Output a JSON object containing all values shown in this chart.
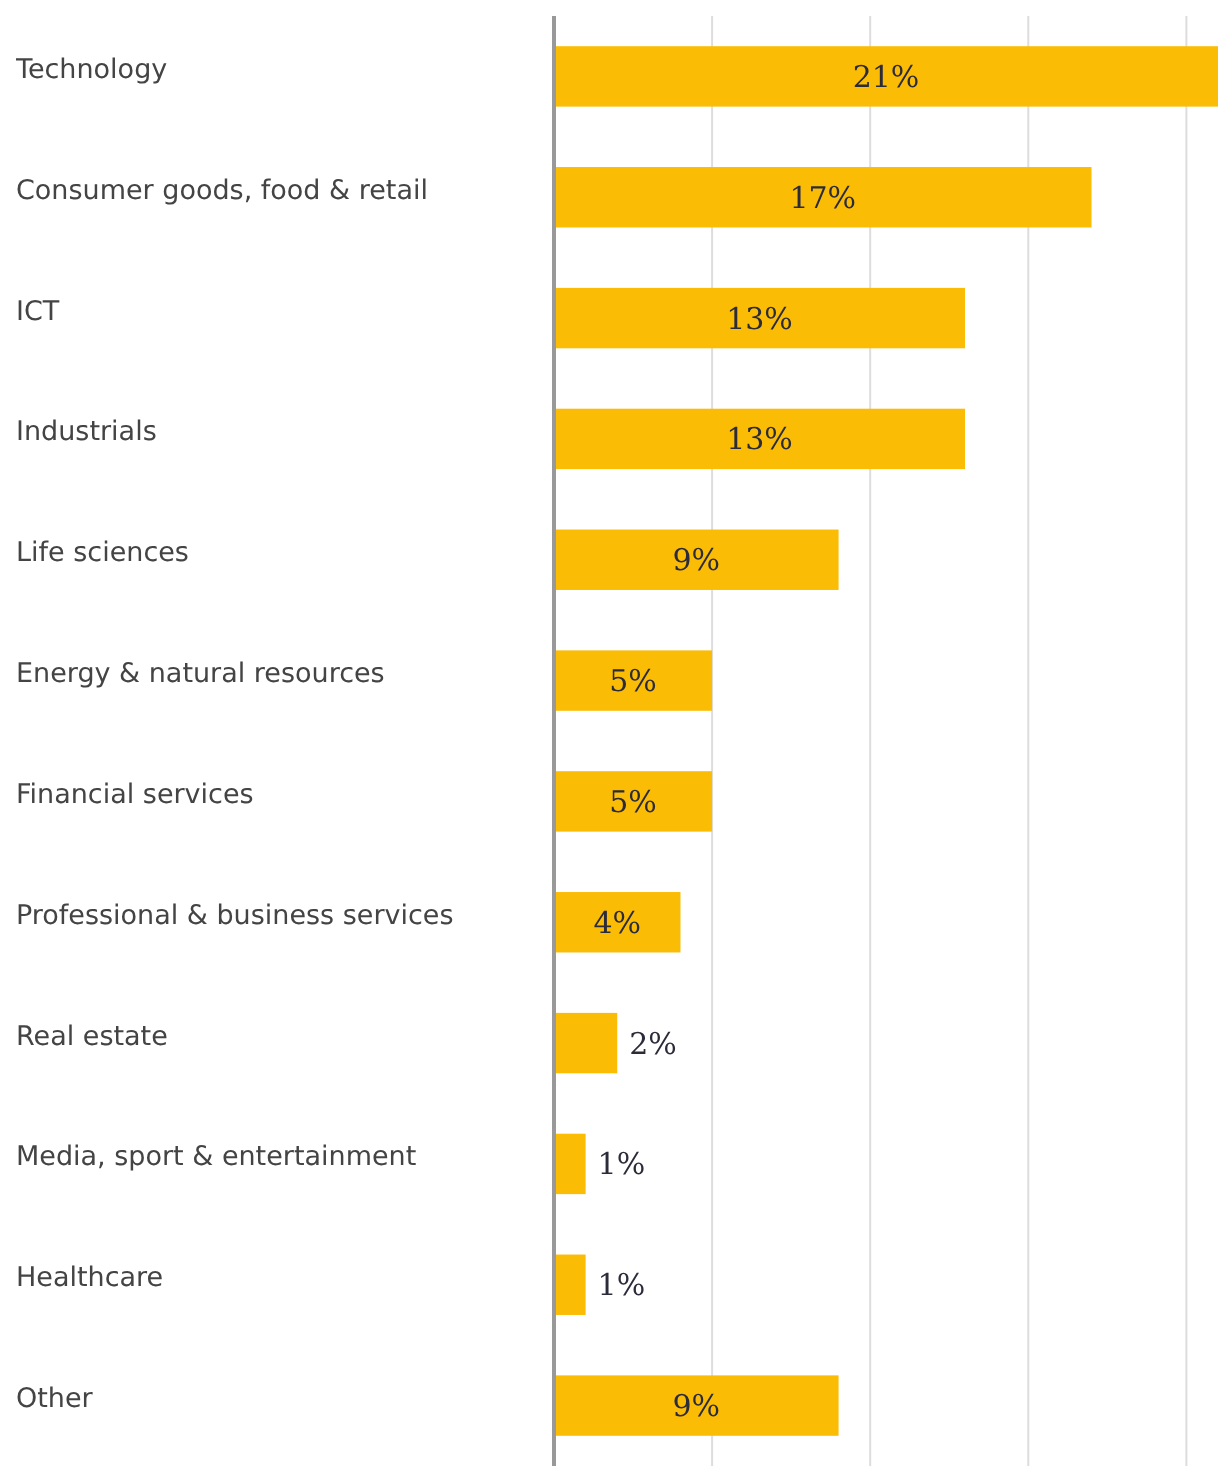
{
  "chart_data": {
    "type": "bar",
    "orientation": "horizontal",
    "categories": [
      "Technology",
      "Consumer goods, food & retail",
      "ICT",
      "Industrials",
      "Life sciences",
      "Energy & natural resources",
      "Financial services",
      "Professional & business services",
      "Real estate",
      "Media, sport & entertainment",
      "Healthcare",
      "Other"
    ],
    "values": [
      21,
      17,
      13,
      13,
      9,
      5,
      5,
      4,
      2,
      1,
      1,
      9
    ],
    "color": "#fbbc05",
    "value_labels": [
      "21%",
      "17%",
      "13%",
      "13%",
      "9%",
      "5%",
      "5%",
      "4%",
      "2%",
      "1%",
      "1%",
      "9%"
    ],
    "xlim": [
      0,
      21
    ],
    "xticks": [
      {
        "value": 0,
        "label": null
      },
      {
        "value": 5,
        "label": null
      },
      {
        "value": 10,
        "label": null
      },
      {
        "value": 15,
        "label": null
      },
      {
        "value": 20,
        "label": null
      }
    ],
    "grid": "x",
    "tick_labels": "y"
  }
}
